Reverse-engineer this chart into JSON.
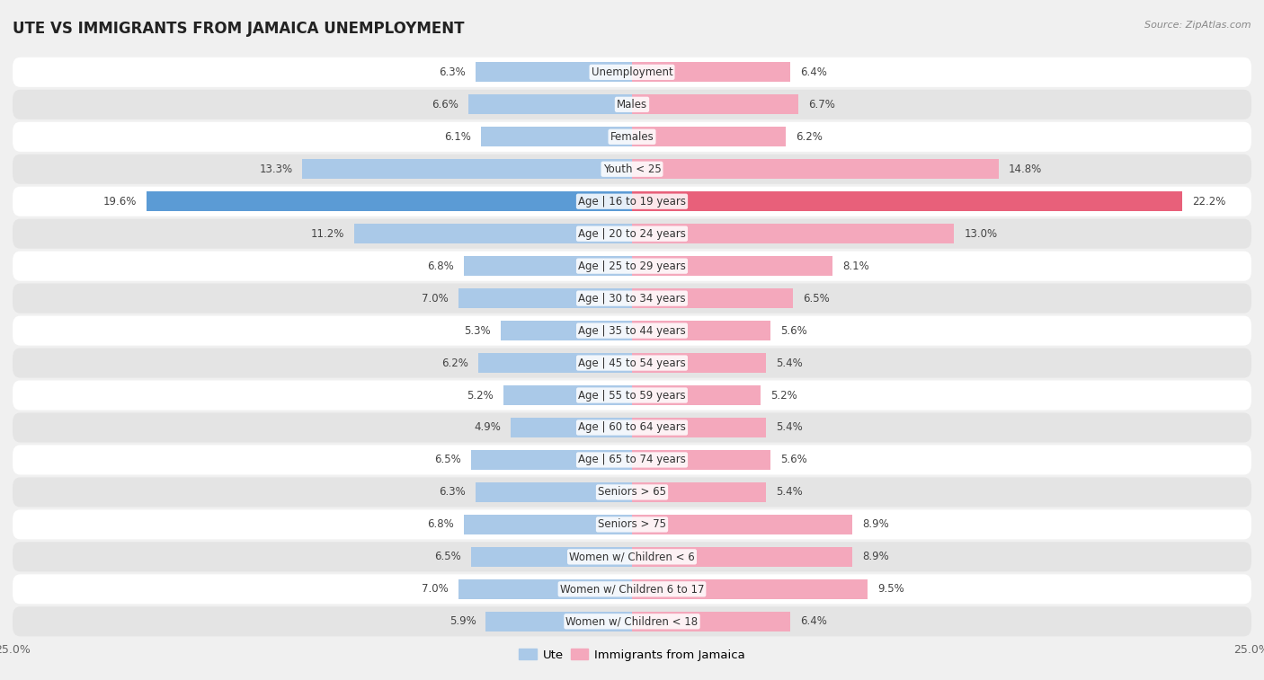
{
  "title": "UTE VS IMMIGRANTS FROM JAMAICA UNEMPLOYMENT",
  "source": "Source: ZipAtlas.com",
  "categories": [
    "Unemployment",
    "Males",
    "Females",
    "Youth < 25",
    "Age | 16 to 19 years",
    "Age | 20 to 24 years",
    "Age | 25 to 29 years",
    "Age | 30 to 34 years",
    "Age | 35 to 44 years",
    "Age | 45 to 54 years",
    "Age | 55 to 59 years",
    "Age | 60 to 64 years",
    "Age | 65 to 74 years",
    "Seniors > 65",
    "Seniors > 75",
    "Women w/ Children < 6",
    "Women w/ Children 6 to 17",
    "Women w/ Children < 18"
  ],
  "ute_values": [
    6.3,
    6.6,
    6.1,
    13.3,
    19.6,
    11.2,
    6.8,
    7.0,
    5.3,
    6.2,
    5.2,
    4.9,
    6.5,
    6.3,
    6.8,
    6.5,
    7.0,
    5.9
  ],
  "jamaica_values": [
    6.4,
    6.7,
    6.2,
    14.8,
    22.2,
    13.0,
    8.1,
    6.5,
    5.6,
    5.4,
    5.2,
    5.4,
    5.6,
    5.4,
    8.9,
    8.9,
    9.5,
    6.4
  ],
  "ute_color": "#aac9e8",
  "jamaica_color": "#f4a8bc",
  "highlight_ute_color": "#5b9bd5",
  "highlight_jamaica_color": "#e8607a",
  "bg_color": "#f0f0f0",
  "row_color_white": "#ffffff",
  "row_color_gray": "#e4e4e4",
  "axis_limit": 25.0,
  "legend_ute": "Ute",
  "legend_jamaica": "Immigrants from Jamaica",
  "highlight_idx": 4
}
